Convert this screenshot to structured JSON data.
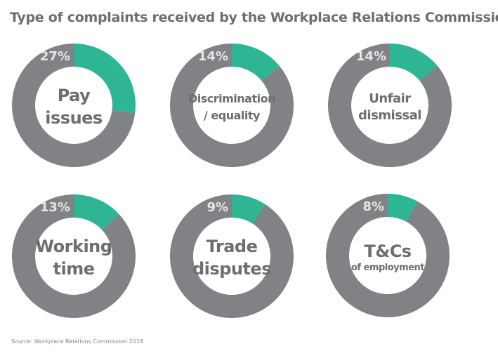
{
  "chart_data": {
    "type": "pie",
    "variant": "donut-small-multiples",
    "title": "Type of complaints received by the Workplace Relations Commission",
    "source": "Source: Workplace Relations Commission 2018",
    "unit": "%",
    "colors": {
      "highlight": "#2db594",
      "remainder": "#808285",
      "label": "#6d6e71",
      "percent_label": "#e6e6e6"
    },
    "items": [
      {
        "category": "Pay issues",
        "lines": [
          "Pay",
          "issues"
        ],
        "value": 27,
        "label": "27%"
      },
      {
        "category": "Discrimination / equality",
        "lines": [
          "Discrimination",
          "/ equality"
        ],
        "value": 14,
        "label": "14%"
      },
      {
        "category": "Unfair dismissal",
        "lines": [
          "Unfair",
          "dismissal"
        ],
        "value": 14,
        "label": "14%"
      },
      {
        "category": "Working time",
        "lines": [
          "Working",
          "time"
        ],
        "value": 13,
        "label": "13%"
      },
      {
        "category": "Trade disputes",
        "lines": [
          "Trade",
          "disputes"
        ],
        "value": 9,
        "label": "9%"
      },
      {
        "category": "T&Cs of employment",
        "lines": [
          "T&Cs",
          "of employment"
        ],
        "value": 8,
        "label": "8%"
      }
    ]
  }
}
